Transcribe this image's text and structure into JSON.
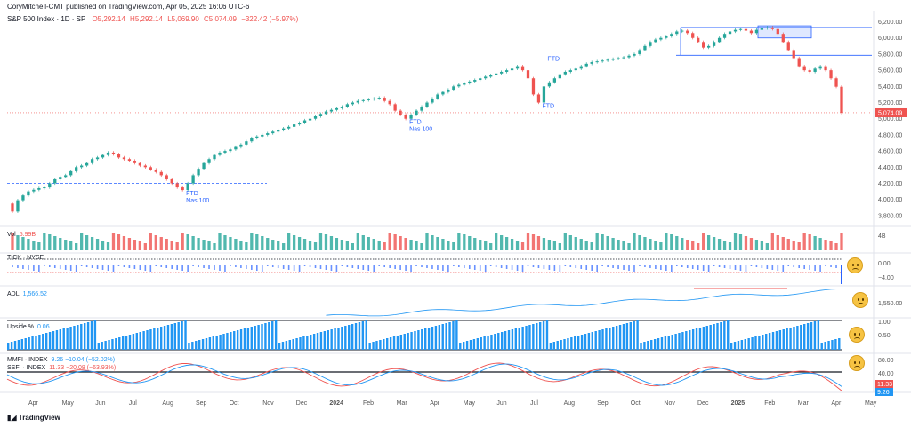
{
  "publisher": "CoryMitchell-CMT published on TradingView.com, Apr 05, 2025 16:06 UTC-6",
  "symbol_line": {
    "name": "S&P 500 Index · 1D · SP",
    "open": "O5,292.14",
    "high": "H5,292.14",
    "low": "L5,069.90",
    "close": "C5,074.09",
    "change": "−322.42 (−5.97%)"
  },
  "last_price_badge": "5,074.09",
  "panes": {
    "volume": {
      "label": "Vol",
      "value": "5.99B",
      "axis": [
        "4B"
      ]
    },
    "tick": {
      "label": "TICK · NYSE",
      "axis": [
        "0.00",
        "−4.00"
      ]
    },
    "adl": {
      "label": "ADL",
      "value": "1,566.52",
      "axis": [
        "1,550.00"
      ]
    },
    "upside": {
      "label": "Upside %",
      "value": "0.06",
      "axis": [
        "1.00",
        "0.50"
      ]
    },
    "mmfi": {
      "label1": "MMFI · INDEX",
      "value1": "9.26  −10.04 (−52.02%)",
      "label2": "SSFI · INDEX",
      "value2": "11.33  −20.08 (−63.93%)",
      "axis": [
        "80.00",
        "40.00"
      ],
      "badge_red": "11.33",
      "badge_blue": "9.26"
    }
  },
  "annotations": [
    "FTD",
    "Nas 100",
    "FTD",
    "Nas 100",
    "FTD",
    "FTD"
  ],
  "footer_logo": "TradingView",
  "colors": {
    "up": "#26a69a",
    "down": "#ef5350",
    "accent": "#2962ff",
    "adl": "#2196f3",
    "upside": "#2196f3",
    "mmfi": "#2196f3",
    "ssfi": "#ef5350",
    "face": "#f6c343"
  },
  "chart_data": {
    "type": "line",
    "title": "S&P 500 Index · 1D · SP",
    "x_labels": [
      "Apr",
      "May",
      "Jun",
      "Jul",
      "Aug",
      "Sep",
      "Oct",
      "Nov",
      "Dec",
      "2024",
      "Feb",
      "Mar",
      "Apr",
      "May",
      "Jun",
      "Jul",
      "Aug",
      "Sep",
      "Oct",
      "Nov",
      "Dec",
      "2025",
      "Feb",
      "Mar",
      "Apr",
      "May"
    ],
    "y_ticks": [
      6200,
      6000,
      5800,
      5600,
      5400,
      5200,
      5000,
      4800,
      4600,
      4400,
      4200,
      4000,
      3800
    ],
    "ylim": [
      3700,
      6250
    ],
    "series": [
      {
        "values": [
          3950,
          3850,
          3990,
          4050,
          4100,
          4120,
          4140,
          4150,
          4200,
          4250,
          4280,
          4300,
          4350,
          4400,
          4420,
          4450,
          4500,
          4520,
          4550,
          4580,
          4560,
          4520,
          4500,
          4480,
          4450,
          4420,
          4400,
          4370,
          4340,
          4300,
          4250,
          4200,
          4150,
          4117,
          4200,
          4300,
          4380,
          4450,
          4500,
          4550,
          4580,
          4600,
          4620,
          4650,
          4680,
          4720,
          4760,
          4780,
          4800,
          4820,
          4840,
          4860,
          4880,
          4900,
          4930,
          4950,
          4980,
          5000,
          5030,
          5060,
          5090,
          5110,
          5130,
          5150,
          5180,
          5200,
          5220,
          5230,
          5240,
          5250,
          5260,
          5220,
          5180,
          5100,
          5050,
          5000,
          5050,
          5100,
          5150,
          5200,
          5250,
          5300,
          5330,
          5360,
          5400,
          5420,
          5440,
          5460,
          5480,
          5500,
          5520,
          5540,
          5560,
          5580,
          5600,
          5620,
          5650,
          5600,
          5500,
          5300,
          5200,
          5400,
          5450,
          5500,
          5550,
          5580,
          5600,
          5620,
          5650,
          5680,
          5700,
          5710,
          5720,
          5730,
          5740,
          5750,
          5760,
          5780,
          5800,
          5850,
          5900,
          5950,
          5980,
          6000,
          6020,
          6050,
          6080,
          6090,
          6060,
          6000,
          5950,
          5880,
          5900,
          5950,
          6000,
          6050,
          6080,
          6100,
          6110,
          6090,
          6060,
          6100,
          6120,
          6130,
          6110,
          6050,
          5950,
          5850,
          5750,
          5650,
          5600,
          5580,
          5620,
          5650,
          5600,
          5500,
          5396,
          5074
        ]
      }
    ],
    "annotations": [
      {
        "text": "FTD",
        "sub": "Nas 100",
        "date": "Oct 2023"
      },
      {
        "text": "FTD",
        "sub": "Nas 100",
        "date": "Apr 2024"
      },
      {
        "text": "FTD",
        "date": "Aug 2024"
      },
      {
        "text": "FTD",
        "date": "Aug 2024"
      }
    ],
    "reference_lines": [
      4200,
      5785,
      6100
    ],
    "last_value": 5074.09
  }
}
